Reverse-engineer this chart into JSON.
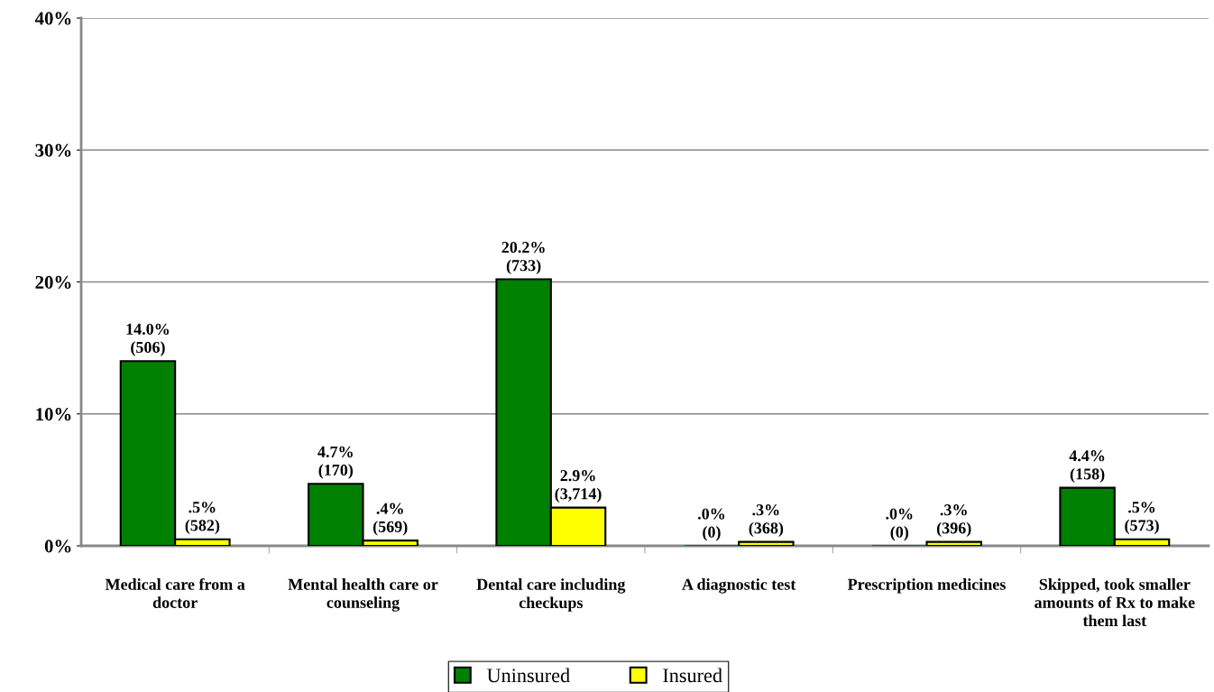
{
  "chart_data": {
    "type": "bar",
    "categories": [
      "Medical care from a doctor",
      "Mental health care or counseling",
      "Dental care including checkups",
      "A diagnostic test",
      "Prescription medicines",
      "Skipped, took smaller amounts of Rx to make them last"
    ],
    "series": [
      {
        "name": "Uninsured",
        "color": "#008000",
        "values": [
          14.0,
          4.7,
          20.2,
          0.0,
          0.0,
          4.4
        ],
        "value_labels": [
          "14.0%\n(506)",
          "4.7%\n(170)",
          "20.2%\n(733)",
          ".0%\n(0)",
          ".0%\n(0)",
          "4.4%\n(158)"
        ]
      },
      {
        "name": "Insured",
        "color": "#ffff00",
        "values": [
          0.5,
          0.4,
          2.9,
          0.3,
          0.3,
          0.5
        ],
        "value_labels": [
          ".5%\n(582)",
          ".4%\n(569)",
          "2.9%\n(3,714)",
          ".3%\n(368)",
          ".3%\n(396)",
          ".5%\n(573)"
        ]
      }
    ],
    "ylim": [
      0,
      40
    ],
    "yticks": [
      {
        "value": 0,
        "label": "0%"
      },
      {
        "value": 10,
        "label": "10%"
      },
      {
        "value": 20,
        "label": "20%"
      },
      {
        "value": 30,
        "label": "30%"
      },
      {
        "value": 40,
        "label": "40%"
      }
    ],
    "grid": "y",
    "legend": "bottom"
  }
}
